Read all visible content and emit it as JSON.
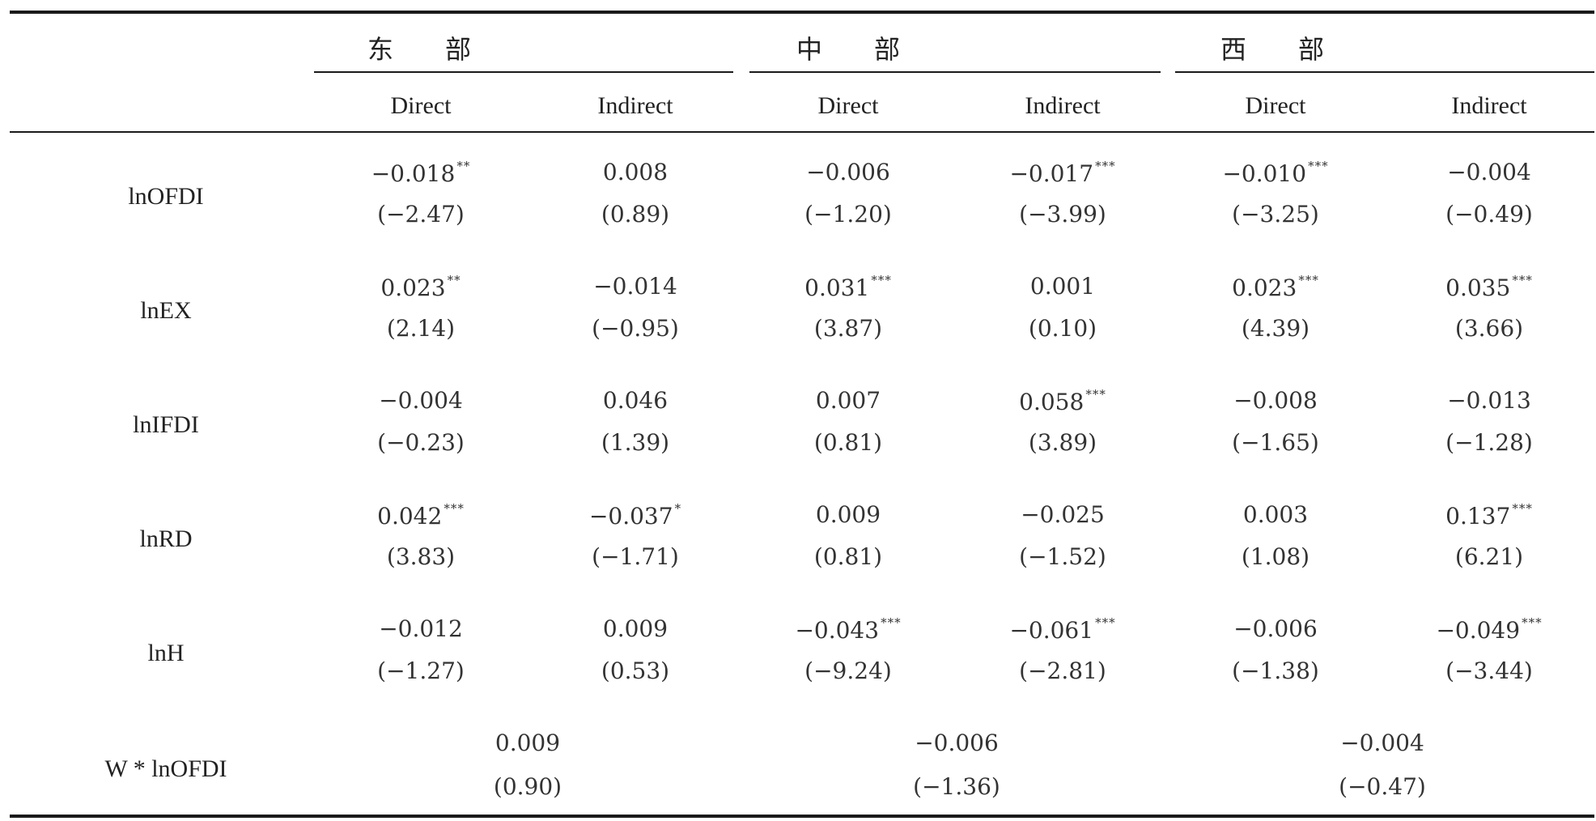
{
  "regions": [
    "东　　部",
    "中　　部",
    "西　　部"
  ],
  "subheaders": [
    "Direct",
    "Indirect",
    "Direct",
    "Indirect",
    "Direct",
    "Indirect"
  ],
  "rows": [
    {
      "label": "lnOFDI",
      "cells": [
        {
          "coef": "−0.018",
          "stars": "**",
          "t": "(−2.47)"
        },
        {
          "coef": "0.008",
          "stars": "",
          "t": "(0.89)"
        },
        {
          "coef": "−0.006",
          "stars": "",
          "t": "(−1.20)"
        },
        {
          "coef": "−0.017",
          "stars": "***",
          "t": "(−3.99)"
        },
        {
          "coef": "−0.010",
          "stars": "***",
          "t": "(−3.25)"
        },
        {
          "coef": "−0.004",
          "stars": "",
          "t": "(−0.49)"
        }
      ]
    },
    {
      "label": "lnEX",
      "cells": [
        {
          "coef": "0.023",
          "stars": "**",
          "t": "(2.14)"
        },
        {
          "coef": "−0.014",
          "stars": "",
          "t": "(−0.95)"
        },
        {
          "coef": "0.031",
          "stars": "***",
          "t": "(3.87)"
        },
        {
          "coef": "0.001",
          "stars": "",
          "t": "(0.10)"
        },
        {
          "coef": "0.023",
          "stars": "***",
          "t": "(4.39)"
        },
        {
          "coef": "0.035",
          "stars": "***",
          "t": "(3.66)"
        }
      ]
    },
    {
      "label": "lnIFDI",
      "cells": [
        {
          "coef": "−0.004",
          "stars": "",
          "t": "(−0.23)"
        },
        {
          "coef": "0.046",
          "stars": "",
          "t": "(1.39)"
        },
        {
          "coef": "0.007",
          "stars": "",
          "t": "(0.81)"
        },
        {
          "coef": "0.058",
          "stars": "***",
          "t": "(3.89)"
        },
        {
          "coef": "−0.008",
          "stars": "",
          "t": "(−1.65)"
        },
        {
          "coef": "−0.013",
          "stars": "",
          "t": "(−1.28)"
        }
      ]
    },
    {
      "label": "lnRD",
      "cells": [
        {
          "coef": "0.042",
          "stars": "***",
          "t": "(3.83)"
        },
        {
          "coef": "−0.037",
          "stars": "*",
          "t": "(−1.71)"
        },
        {
          "coef": "0.009",
          "stars": "",
          "t": "(0.81)"
        },
        {
          "coef": "−0.025",
          "stars": "",
          "t": "(−1.52)"
        },
        {
          "coef": "0.003",
          "stars": "",
          "t": "(1.08)"
        },
        {
          "coef": "0.137",
          "stars": "***",
          "t": "(6.21)"
        }
      ]
    },
    {
      "label": "lnH",
      "cells": [
        {
          "coef": "−0.012",
          "stars": "",
          "t": "(−1.27)"
        },
        {
          "coef": "0.009",
          "stars": "",
          "t": "(0.53)"
        },
        {
          "coef": "−0.043",
          "stars": "***",
          "t": "(−9.24)"
        },
        {
          "coef": "−0.061",
          "stars": "***",
          "t": "(−2.81)"
        },
        {
          "coef": "−0.006",
          "stars": "",
          "t": "(−1.38)"
        },
        {
          "coef": "−0.049",
          "stars": "***",
          "t": "(−3.44)"
        }
      ]
    }
  ],
  "w_row": {
    "label": "W * lnOFDI",
    "cells": [
      {
        "coef": "0.009",
        "t": "(0.90)"
      },
      {
        "coef": "−0.006",
        "t": "(−1.36)"
      },
      {
        "coef": "−0.004",
        "t": "(−0.47)"
      }
    ]
  }
}
